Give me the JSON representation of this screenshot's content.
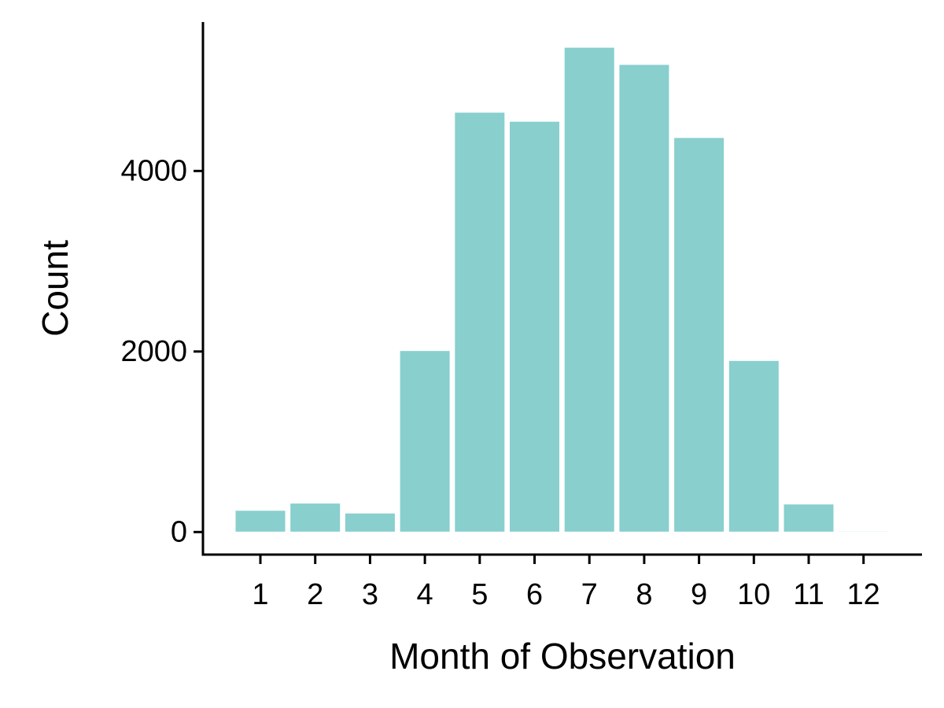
{
  "colors": {
    "bar_fill": "#88CFCE",
    "bar_stroke": "#ffffff",
    "axis": "#000000",
    "background": "#ffffff"
  },
  "chart_data": {
    "type": "bar",
    "title": "",
    "xlabel": "Month of Observation",
    "ylabel": "Count",
    "categories": [
      "1",
      "2",
      "3",
      "4",
      "5",
      "6",
      "7",
      "8",
      "9",
      "10",
      "11",
      "12"
    ],
    "values": [
      240,
      320,
      210,
      2010,
      4650,
      4550,
      5370,
      5180,
      4370,
      1900,
      310,
      10
    ],
    "ylim": [
      -250,
      5650
    ],
    "yticks": [
      0,
      2000,
      4000
    ],
    "ytick_labels": [
      "0",
      "2000",
      "4000"
    ],
    "grid": false,
    "legend": "none"
  }
}
